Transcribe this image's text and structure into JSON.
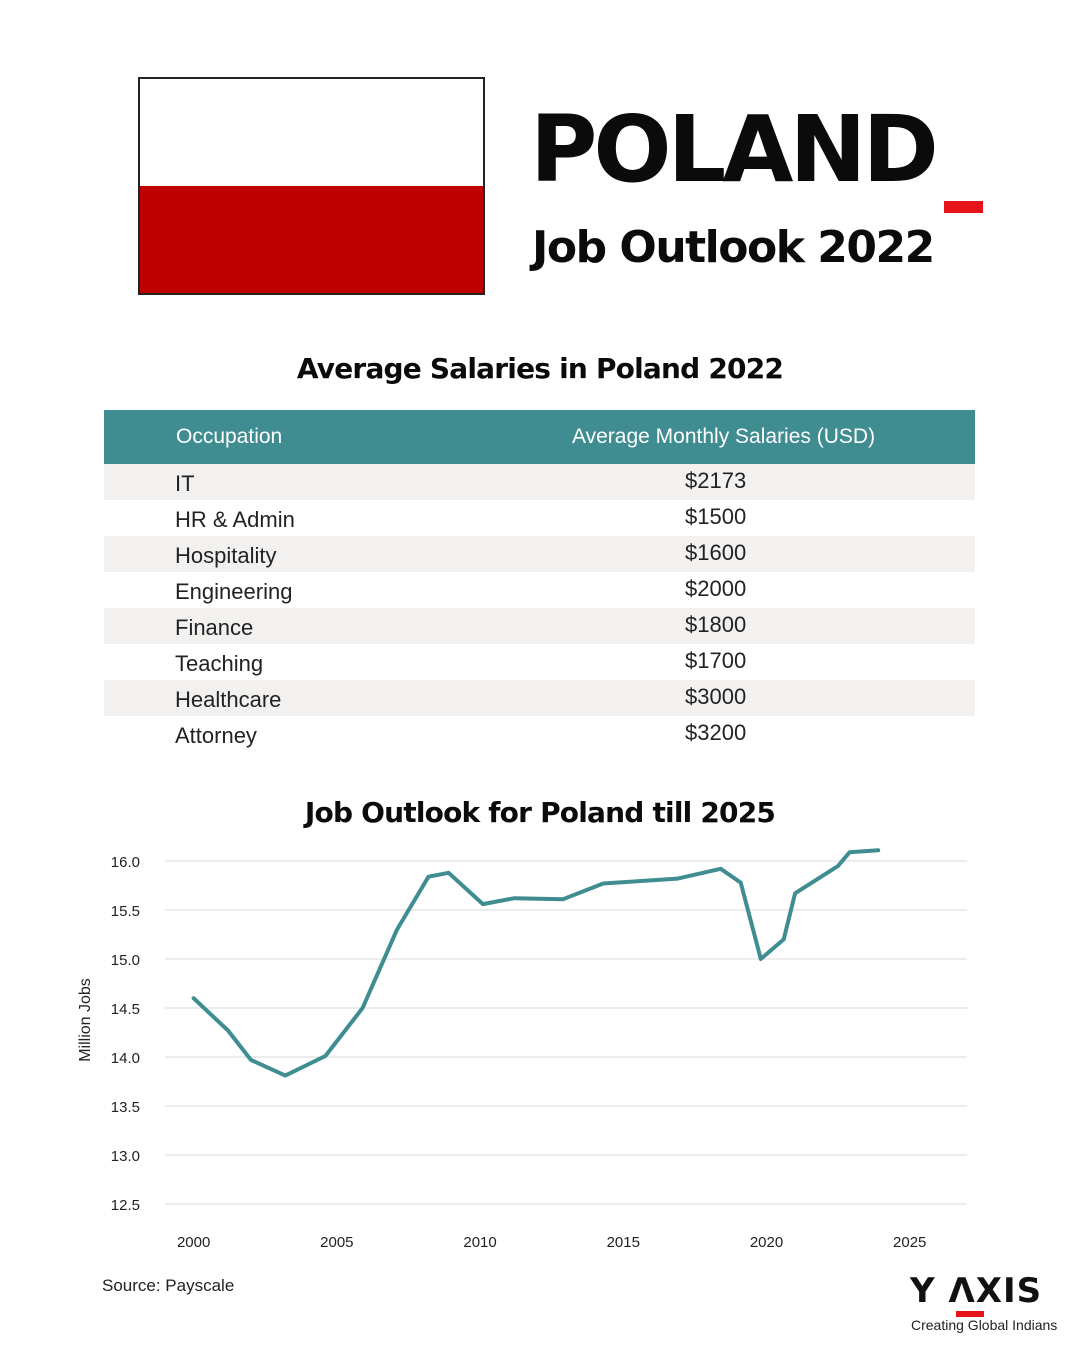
{
  "header": {
    "title": "POLAND",
    "subtitle": "Job Outlook 2022",
    "flag_colors": [
      "#ffffff",
      "#c00000"
    ],
    "accent_color": "#e8121b"
  },
  "salary_table": {
    "title": "Average Salaries in Poland 2022",
    "header_color": "#3f8c91",
    "columns": [
      "Occupation",
      "Average Monthly Salaries (USD)"
    ],
    "rows": [
      {
        "occupation": "IT",
        "salary": "$2173"
      },
      {
        "occupation": "HR & Admin",
        "salary": "$1500"
      },
      {
        "occupation": "Hospitality",
        "salary": "$1600"
      },
      {
        "occupation": "Engineering",
        "salary": "$2000"
      },
      {
        "occupation": "Finance",
        "salary": "$1800"
      },
      {
        "occupation": "Teaching",
        "salary": "$1700"
      },
      {
        "occupation": "Healthcare",
        "salary": "$3000"
      },
      {
        "occupation": "Attorney",
        "salary": "$3200"
      }
    ]
  },
  "chart_data": {
    "type": "line",
    "title": "Job Outlook for Poland till 2025",
    "xlabel": "",
    "ylabel": "Million Jobs",
    "xlim": [
      1999,
      2027
    ],
    "ylim": [
      12.5,
      16.0
    ],
    "x_ticks": [
      2000,
      2005,
      2010,
      2015,
      2020,
      2025
    ],
    "y_ticks": [
      "16.0",
      "15.5",
      "15.0",
      "14.5",
      "14.0",
      "13.5",
      "13.0",
      "12.5"
    ],
    "grid": true,
    "line_color": "#3f8c91",
    "series": [
      {
        "x": [
          2000,
          2001.2,
          2002,
          2003.2,
          2004.6,
          2005.9,
          2007.1,
          2008.2,
          2008.9,
          2010.1,
          2011.2,
          2012.9,
          2014.3,
          2016.9,
          2018.4,
          2019.1,
          2019.8,
          2020.6,
          2021,
          2022.5,
          2022.9,
          2023.9
        ],
        "y": [
          14.6,
          14.27,
          13.97,
          13.81,
          14.01,
          14.5,
          15.3,
          15.84,
          15.88,
          15.56,
          15.62,
          15.61,
          15.77,
          15.82,
          15.92,
          15.78,
          15.0,
          15.2,
          15.67,
          15.95,
          16.09,
          16.11
        ]
      }
    ]
  },
  "footer": {
    "source": "Source: Payscale",
    "logo_text": "Y ΛXIS",
    "logo_tagline": "Creating Global Indians"
  }
}
